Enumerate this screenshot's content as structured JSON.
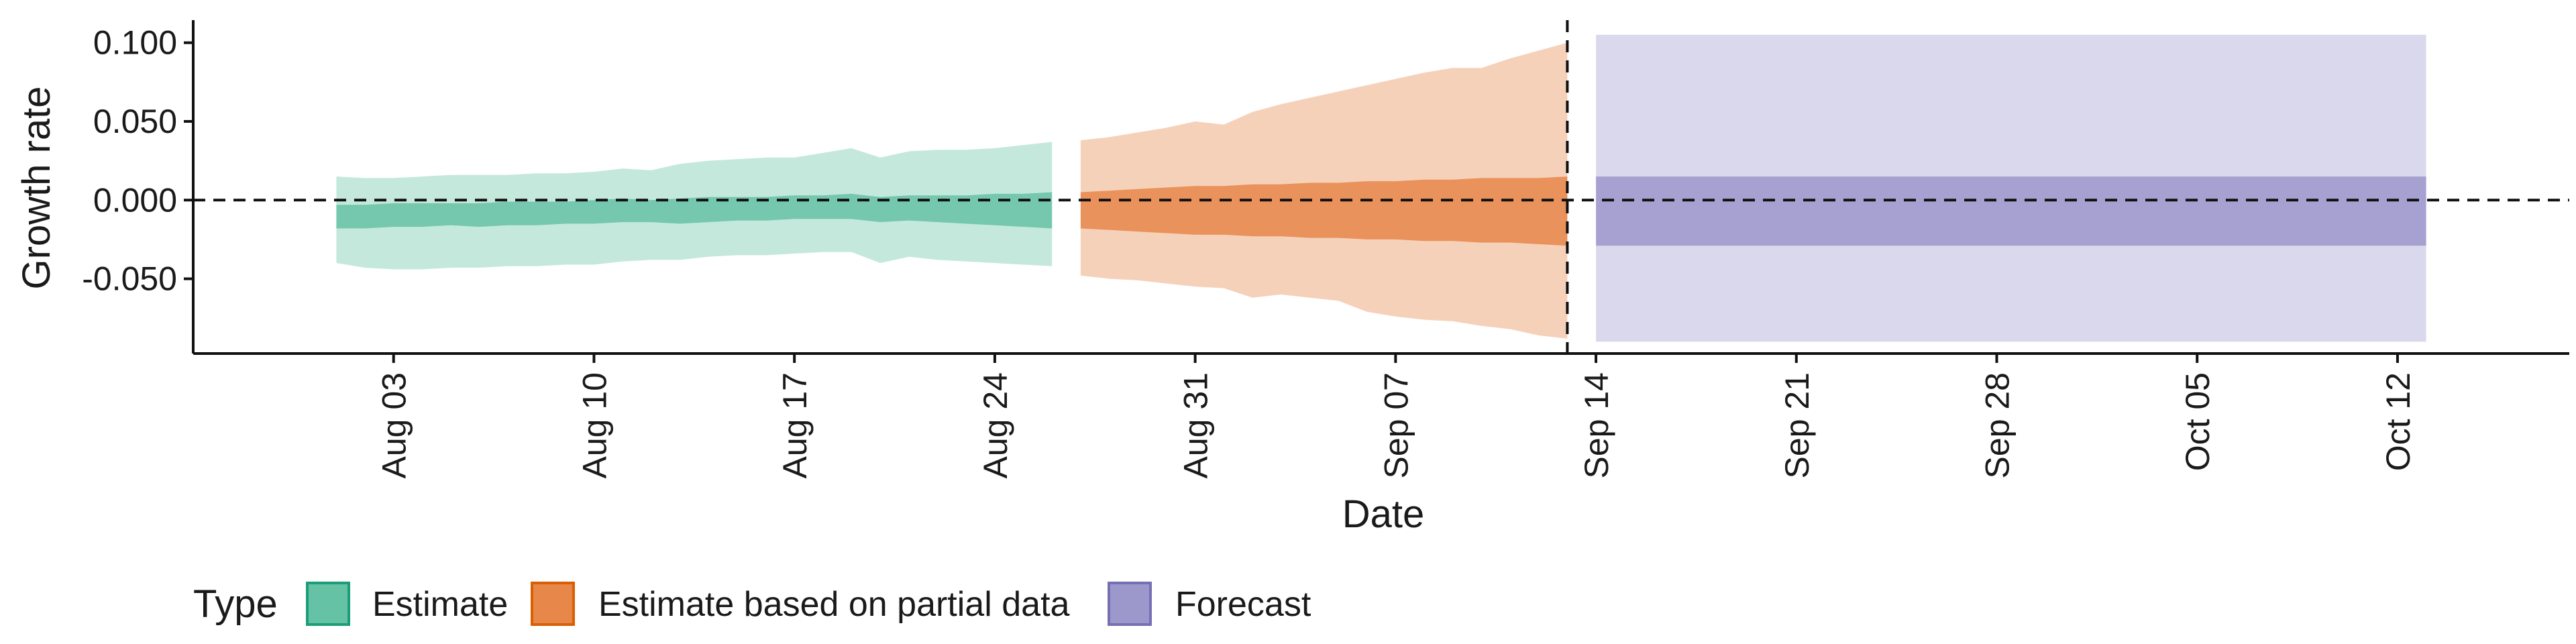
{
  "chart_data": {
    "type": "area",
    "ylabel": "Growth rate",
    "xlabel": "Date",
    "ylim": [
      -0.0975,
      0.1135
    ],
    "xlim": [
      "2022-07-27",
      "2022-10-18"
    ],
    "y_ticks": [
      0.1,
      0.05,
      0.0,
      -0.05
    ],
    "y_tick_labels": [
      "0.100",
      "0.050",
      "0.000",
      "-0.050"
    ],
    "x_ticks": [
      "2022-08-03",
      "2022-08-10",
      "2022-08-17",
      "2022-08-24",
      "2022-08-31",
      "2022-09-07",
      "2022-09-14",
      "2022-09-21",
      "2022-09-28",
      "2022-10-05",
      "2022-10-12"
    ],
    "x_tick_labels": [
      "Aug 03",
      "Aug 10",
      "Aug 17",
      "Aug 24",
      "Aug 31",
      "Sep 07",
      "Sep 14",
      "Sep 21",
      "Sep 28",
      "Oct 05",
      "Oct 12"
    ],
    "hline_y": 0.0,
    "vline_date": "2022-09-13",
    "grid": false,
    "legend": {
      "title": "Type",
      "position": "bottom-left",
      "entries": [
        "Estimate",
        "Estimate based on partial data",
        "Forecast"
      ]
    },
    "colors": {
      "Estimate": "#66c2a5",
      "Estimate based on partial data": "#e8874a",
      "Forecast": "#9d98cc",
      "Estimate_border": "#1b9e77",
      "Estimate based on partial data_border": "#d95f02",
      "Forecast_border": "#7570b3"
    },
    "series": [
      {
        "name": "Estimate",
        "dates": [
          "2022-08-01",
          "2022-08-02",
          "2022-08-03",
          "2022-08-04",
          "2022-08-05",
          "2022-08-06",
          "2022-08-07",
          "2022-08-08",
          "2022-08-09",
          "2022-08-10",
          "2022-08-11",
          "2022-08-12",
          "2022-08-13",
          "2022-08-14",
          "2022-08-15",
          "2022-08-16",
          "2022-08-17",
          "2022-08-18",
          "2022-08-19",
          "2022-08-20",
          "2022-08-21",
          "2022-08-22",
          "2022-08-23",
          "2022-08-24",
          "2022-08-25",
          "2022-08-26"
        ],
        "lower_90": [
          -0.04,
          -0.043,
          -0.044,
          -0.044,
          -0.043,
          -0.043,
          -0.042,
          -0.042,
          -0.041,
          -0.041,
          -0.039,
          -0.038,
          -0.038,
          -0.036,
          -0.035,
          -0.035,
          -0.034,
          -0.033,
          -0.033,
          -0.04,
          -0.036,
          -0.038,
          -0.039,
          -0.04,
          -0.041,
          -0.042
        ],
        "upper_90": [
          0.015,
          0.014,
          0.014,
          0.015,
          0.016,
          0.016,
          0.016,
          0.017,
          0.017,
          0.018,
          0.02,
          0.019,
          0.023,
          0.025,
          0.026,
          0.027,
          0.027,
          0.03,
          0.033,
          0.027,
          0.031,
          0.032,
          0.032,
          0.033,
          0.035,
          0.037
        ],
        "lower_50": [
          -0.018,
          -0.018,
          -0.017,
          -0.017,
          -0.016,
          -0.017,
          -0.016,
          -0.016,
          -0.015,
          -0.015,
          -0.014,
          -0.014,
          -0.015,
          -0.014,
          -0.013,
          -0.013,
          -0.012,
          -0.012,
          -0.012,
          -0.014,
          -0.013,
          -0.014,
          -0.015,
          -0.016,
          -0.017,
          -0.018
        ],
        "upper_50": [
          -0.003,
          -0.003,
          -0.002,
          -0.002,
          -0.002,
          -0.002,
          -0.001,
          -0.001,
          -0.001,
          0.0,
          0.001,
          0.0,
          0.001,
          0.002,
          0.002,
          0.002,
          0.003,
          0.003,
          0.004,
          0.002,
          0.003,
          0.003,
          0.003,
          0.004,
          0.004,
          0.005
        ]
      },
      {
        "name": "Estimate based on partial data",
        "dates": [
          "2022-08-27",
          "2022-08-28",
          "2022-08-29",
          "2022-08-30",
          "2022-08-31",
          "2022-09-01",
          "2022-09-02",
          "2022-09-03",
          "2022-09-04",
          "2022-09-05",
          "2022-09-06",
          "2022-09-07",
          "2022-09-08",
          "2022-09-09",
          "2022-09-10",
          "2022-09-11",
          "2022-09-12",
          "2022-09-13"
        ],
        "lower_90": [
          -0.048,
          -0.05,
          -0.051,
          -0.053,
          -0.055,
          -0.056,
          -0.062,
          -0.06,
          -0.062,
          -0.064,
          -0.071,
          -0.074,
          -0.076,
          -0.077,
          -0.08,
          -0.082,
          -0.086,
          -0.088
        ],
        "upper_90": [
          0.038,
          0.04,
          0.043,
          0.046,
          0.05,
          0.048,
          0.056,
          0.061,
          0.065,
          0.069,
          0.073,
          0.077,
          0.081,
          0.084,
          0.084,
          0.09,
          0.095,
          0.1
        ],
        "lower_50": [
          -0.018,
          -0.019,
          -0.02,
          -0.021,
          -0.022,
          -0.022,
          -0.023,
          -0.023,
          -0.024,
          -0.024,
          -0.025,
          -0.025,
          -0.026,
          -0.026,
          -0.027,
          -0.027,
          -0.028,
          -0.029
        ],
        "upper_50": [
          0.005,
          0.006,
          0.007,
          0.008,
          0.009,
          0.009,
          0.01,
          0.01,
          0.011,
          0.011,
          0.012,
          0.012,
          0.013,
          0.013,
          0.014,
          0.014,
          0.014,
          0.015
        ]
      },
      {
        "name": "Forecast",
        "dates": [
          "2022-09-14",
          "2022-10-13"
        ],
        "lower_90": [
          -0.09,
          -0.09
        ],
        "upper_90": [
          0.105,
          0.105
        ],
        "lower_50": [
          -0.029,
          -0.029
        ],
        "upper_50": [
          0.015,
          0.015
        ]
      }
    ]
  }
}
